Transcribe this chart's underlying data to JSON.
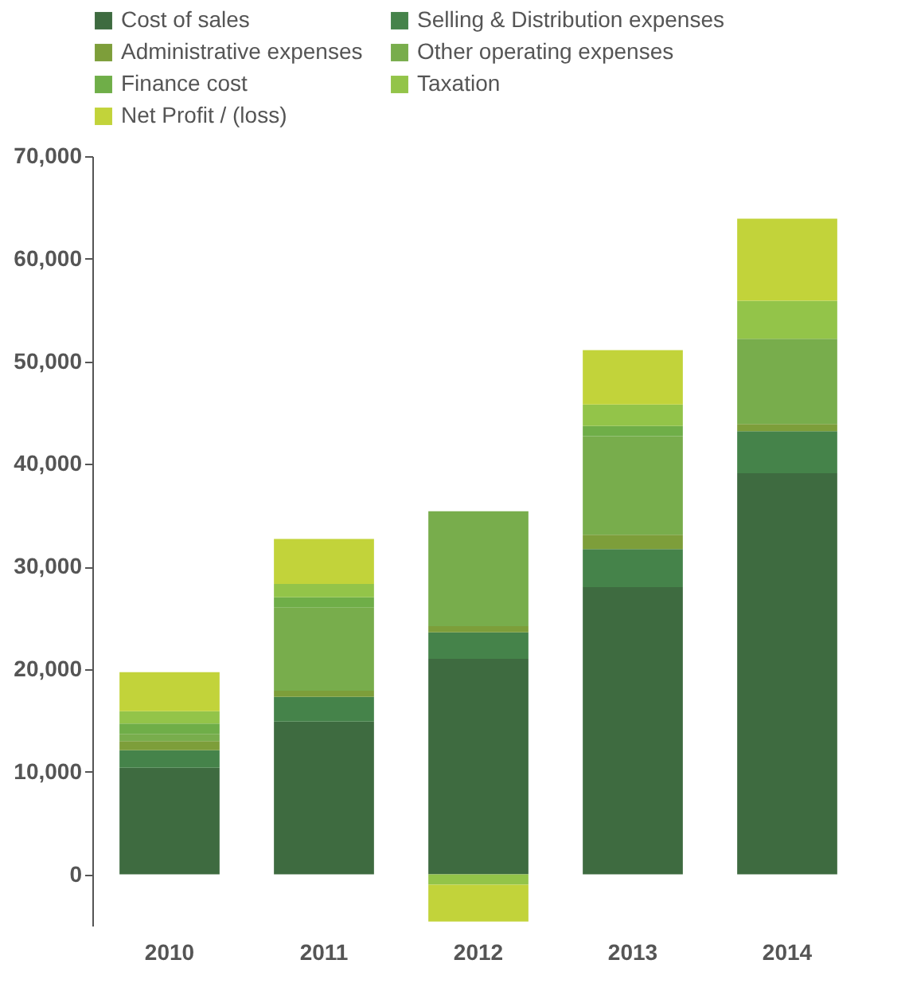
{
  "chart_data": {
    "type": "bar",
    "stacked": true,
    "categories": [
      "2010",
      "2011",
      "2012",
      "2013",
      "2014"
    ],
    "series": [
      {
        "name": "Cost of sales",
        "color": "#3e6b40",
        "values": [
          10400,
          14900,
          21000,
          28000,
          39100
        ]
      },
      {
        "name": "Selling & Distribution expenses",
        "color": "#45834a",
        "values": [
          1700,
          2400,
          2600,
          3700,
          4100
        ]
      },
      {
        "name": "Administrative expenses",
        "color": "#7d9e3a",
        "values": [
          900,
          600,
          600,
          1400,
          700
        ]
      },
      {
        "name": "Other operating expenses",
        "color": "#78ad4c",
        "values": [
          700,
          8100,
          11200,
          9600,
          8300
        ]
      },
      {
        "name": "Finance cost",
        "color": "#6fae48",
        "values": [
          1000,
          1000,
          0,
          1000,
          0
        ]
      },
      {
        "name": "Taxation",
        "color": "#93c449",
        "values": [
          1200,
          1300,
          -1000,
          2100,
          3700
        ]
      },
      {
        "name": "Net Profit / (loss)",
        "color": "#c2d33a",
        "values": [
          3800,
          4400,
          -3600,
          5300,
          8000
        ]
      }
    ],
    "ylim": [
      -5000,
      70000
    ],
    "yticks": [
      0,
      {
        "value": 10000,
        "label": "10,000"
      },
      {
        "value": 20000,
        "label": "20,000"
      },
      {
        "value": 30000,
        "label": "30,000"
      },
      {
        "value": 40000,
        "label": "40,000"
      },
      {
        "value": 50000,
        "label": "50,000"
      },
      {
        "value": 60000,
        "label": "60,000"
      },
      {
        "value": 70000,
        "label": "70,000"
      }
    ],
    "grid": false,
    "legend": "top"
  }
}
